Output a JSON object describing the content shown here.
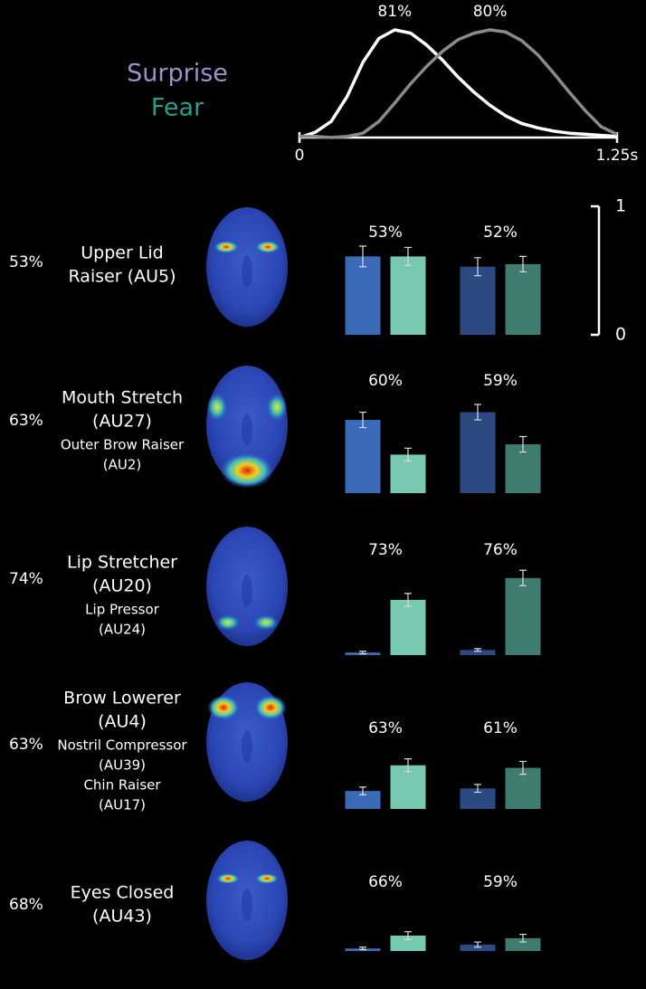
{
  "chart_data": [
    {
      "type": "line",
      "xlim": [
        0,
        1.25
      ],
      "xticks": [
        0,
        {
          "value": 1.25,
          "label": "1.25s"
        }
      ],
      "ylim": [
        0,
        1
      ],
      "x": [
        0,
        0.0625,
        0.125,
        0.1875,
        0.25,
        0.3125,
        0.375,
        0.4375,
        0.5,
        0.5625,
        0.625,
        0.6875,
        0.75,
        0.8125,
        0.875,
        0.9375,
        1.0,
        1.0625,
        1.125,
        1.1875,
        1.25
      ],
      "series": [
        {
          "name": "Surprise",
          "color": "#ffffff",
          "legend_color": "#9a93c8",
          "peak_label": "81%",
          "values": [
            0,
            0.05,
            0.15,
            0.38,
            0.7,
            0.92,
            1.0,
            0.97,
            0.86,
            0.72,
            0.56,
            0.42,
            0.3,
            0.2,
            0.13,
            0.09,
            0.06,
            0.04,
            0.03,
            0.02,
            0.01
          ]
        },
        {
          "name": "Fear",
          "color": "#8a8a8a",
          "legend_color": "#2a9c8e",
          "peak_label": "80%",
          "values": [
            0.01,
            0.01,
            0,
            0.01,
            0.04,
            0.15,
            0.32,
            0.5,
            0.66,
            0.8,
            0.91,
            0.97,
            1.0,
            0.98,
            0.9,
            0.77,
            0.6,
            0.42,
            0.25,
            0.1,
            0.03
          ]
        }
      ]
    },
    {
      "type": "bar",
      "row_label": "53%",
      "action_units": [
        [
          "Upper Lid",
          "Raiser (AU5)"
        ]
      ],
      "categories": [
        "53%",
        "52%"
      ],
      "ylim": [
        0,
        1
      ],
      "yticks": [
        0,
        1
      ],
      "series": [
        {
          "colors": [
            "#3a6ab8",
            "#2b4a82"
          ],
          "values": [
            0.61,
            0.53
          ],
          "errors": [
            0.08,
            0.07
          ]
        },
        {
          "colors": [
            "#76c8b0",
            "#3f7b6f"
          ],
          "values": [
            0.61,
            0.55
          ],
          "errors": [
            0.07,
            0.06
          ]
        }
      ]
    },
    {
      "type": "bar",
      "row_label": "63%",
      "action_units": [
        [
          "Mouth Stretch",
          "(AU27)"
        ],
        [
          "Outer Brow Raiser",
          "(AU2)"
        ]
      ],
      "categories": [
        "60%",
        "59%"
      ],
      "ylim": [
        0,
        1
      ],
      "series": [
        {
          "colors": [
            "#3a6ab8",
            "#2b4a82"
          ],
          "values": [
            0.57,
            0.63
          ],
          "errors": [
            0.06,
            0.06
          ]
        },
        {
          "colors": [
            "#76c8b0",
            "#3f7b6f"
          ],
          "values": [
            0.3,
            0.38
          ],
          "errors": [
            0.05,
            0.06
          ]
        }
      ]
    },
    {
      "type": "bar",
      "row_label": "74%",
      "action_units": [
        [
          "Lip Stretcher",
          "(AU20)"
        ],
        [
          "Lip Pressor",
          "(AU24)"
        ]
      ],
      "categories": [
        "73%",
        "76%"
      ],
      "ylim": [
        0,
        1
      ],
      "series": [
        {
          "colors": [
            "#3a6ab8",
            "#2b4a82"
          ],
          "values": [
            0.02,
            0.04
          ],
          "errors": [
            0.01,
            0.01
          ]
        },
        {
          "colors": [
            "#76c8b0",
            "#3f7b6f"
          ],
          "values": [
            0.43,
            0.6
          ],
          "errors": [
            0.05,
            0.06
          ]
        }
      ]
    },
    {
      "type": "bar",
      "row_label": "63%",
      "action_units": [
        [
          "Brow Lowerer",
          "(AU4)"
        ],
        [
          "Nostril Compressor",
          "(AU39)"
        ],
        [
          "Chin Raiser",
          "(AU17)"
        ]
      ],
      "categories": [
        "63%",
        "61%"
      ],
      "ylim": [
        0,
        1
      ],
      "series": [
        {
          "colors": [
            "#3a6ab8",
            "#2b4a82"
          ],
          "values": [
            0.14,
            0.16
          ],
          "errors": [
            0.03,
            0.03
          ]
        },
        {
          "colors": [
            "#76c8b0",
            "#3f7b6f"
          ],
          "values": [
            0.34,
            0.32
          ],
          "errors": [
            0.05,
            0.05
          ]
        }
      ]
    },
    {
      "type": "bar",
      "row_label": "68%",
      "action_units": [
        [
          "Eyes Closed",
          "(AU43)"
        ]
      ],
      "categories": [
        "66%",
        "59%"
      ],
      "ylim": [
        0,
        1
      ],
      "series": [
        {
          "colors": [
            "#3a6ab8",
            "#2b4a82"
          ],
          "values": [
            0.02,
            0.05
          ],
          "errors": [
            0.01,
            0.02
          ]
        },
        {
          "colors": [
            "#76c8b0",
            "#3f7b6f"
          ],
          "values": [
            0.12,
            0.1
          ],
          "errors": [
            0.03,
            0.03
          ]
        }
      ]
    }
  ]
}
